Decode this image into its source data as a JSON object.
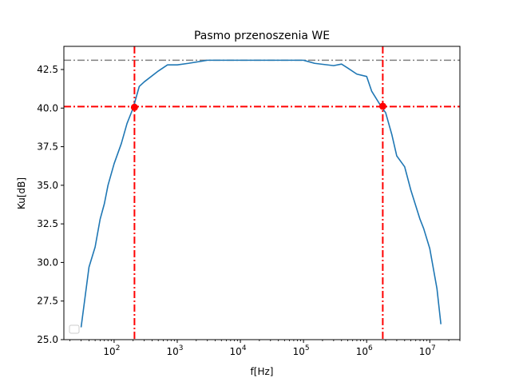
{
  "chart_data": {
    "type": "line",
    "title": "Pasmo przenoszenia WE",
    "xlabel": "f[Hz]",
    "ylabel": "Ku[dB]",
    "xscale": "log",
    "xlim": [
      16,
      30000000
    ],
    "ylim": [
      25.0,
      44.0
    ],
    "yticks": [
      25.0,
      27.5,
      30.0,
      32.5,
      35.0,
      37.5,
      40.0,
      42.5
    ],
    "ytick_labels": [
      "25.0",
      "27.5",
      "30.0",
      "32.5",
      "35.0",
      "37.5",
      "40.0",
      "42.5"
    ],
    "xticks": [
      100,
      1000,
      10000,
      100000,
      1000000,
      10000000
    ],
    "xtick_labels": [
      {
        "base": "10",
        "exp": "2"
      },
      {
        "base": "10",
        "exp": "3"
      },
      {
        "base": "10",
        "exp": "4"
      },
      {
        "base": "10",
        "exp": "5"
      },
      {
        "base": "10",
        "exp": "6"
      },
      {
        "base": "10",
        "exp": "7"
      }
    ],
    "grid": false,
    "legend": "lower-left",
    "series": [
      {
        "color": "#1f77b4",
        "x": [
          30,
          40,
          50,
          60,
          70,
          80,
          100,
          130,
          160,
          200,
          250,
          300,
          500,
          700,
          1000,
          1500,
          3000,
          10000,
          30000,
          100000,
          150000,
          300000,
          400000,
          500000,
          700000,
          1000000,
          1200000,
          1700000,
          2000000,
          2500000,
          3000000,
          4000000,
          5000000,
          7000000,
          8000000,
          10000000,
          13000000,
          15000000
        ],
        "y": [
          25.8,
          29.7,
          31.0,
          32.8,
          33.8,
          35.0,
          36.4,
          37.7,
          39.0,
          40.0,
          41.4,
          41.7,
          42.4,
          42.8,
          42.8,
          42.9,
          43.1,
          43.1,
          43.1,
          43.1,
          42.9,
          42.75,
          42.85,
          42.6,
          42.2,
          42.05,
          41.1,
          40.1,
          39.7,
          38.3,
          36.9,
          36.2,
          34.7,
          32.8,
          32.2,
          30.9,
          28.3,
          26.0
        ]
      }
    ],
    "reference_lines": {
      "max_level_y": 43.1,
      "max_level_color": "#808080",
      "cutoff_level_y": 40.1,
      "lower_cutoff_x": 210,
      "upper_cutoff_x": 1800000,
      "marker_color": "#ff0000"
    },
    "points": [
      {
        "x": 210,
        "y": 40.05
      },
      {
        "x": 1800000,
        "y": 40.12
      }
    ]
  }
}
